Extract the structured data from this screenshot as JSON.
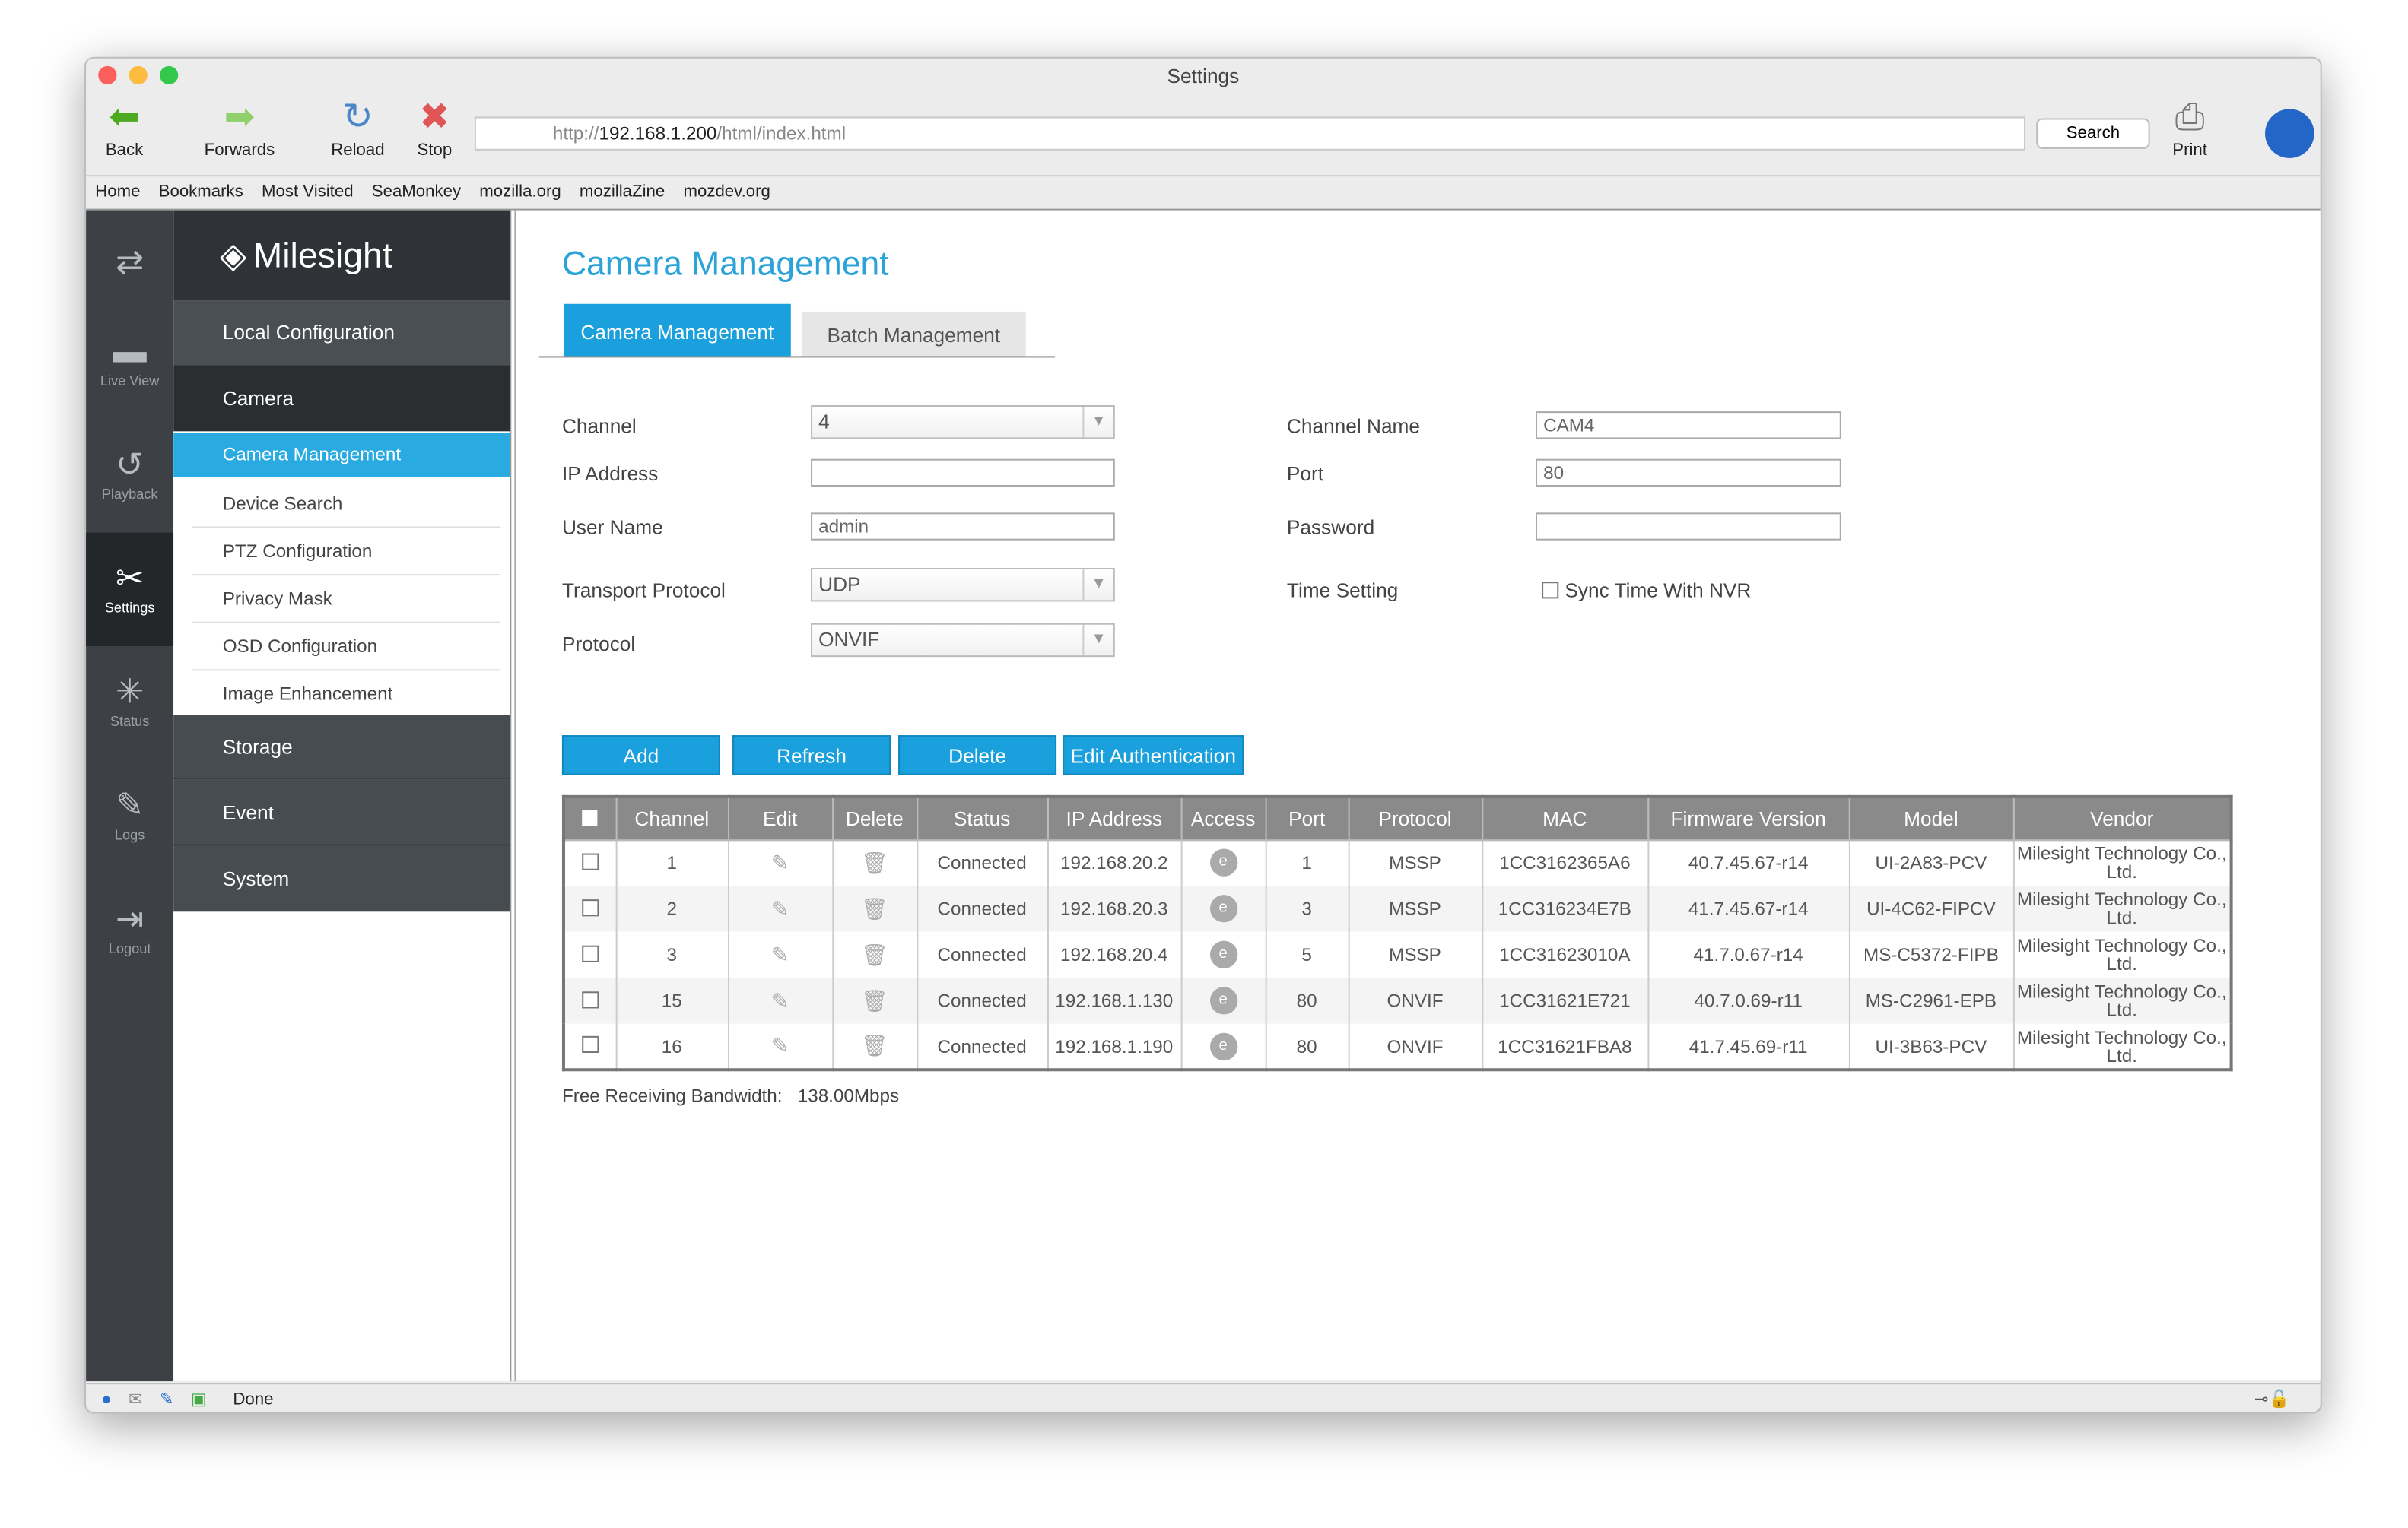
{
  "window": {
    "title": "Settings"
  },
  "toolbar": {
    "back": "Back",
    "forwards": "Forwards",
    "reload": "Reload",
    "stop": "Stop",
    "url_prefix": "http://",
    "url_host": "192.168.1.200",
    "url_path": "/html/index.html",
    "search": "Search",
    "print": "Print"
  },
  "bookmarks": [
    "Home",
    "Bookmarks",
    "Most Visited",
    "SeaMonkey",
    "mozilla.org",
    "mozillaZine",
    "mozdev.org"
  ],
  "strip": [
    {
      "label": "",
      "icon": "switch-icon"
    },
    {
      "label": "Live View",
      "icon": "camera-icon"
    },
    {
      "label": "Playback",
      "icon": "playback-icon"
    },
    {
      "label": "Settings",
      "icon": "settings-icon"
    },
    {
      "label": "Status",
      "icon": "status-icon"
    },
    {
      "label": "Logs",
      "icon": "logs-icon"
    },
    {
      "label": "Logout",
      "icon": "logout-icon"
    }
  ],
  "menu": {
    "logo": "Milesight",
    "local": "Local Configuration",
    "camera": "Camera",
    "selected": "Camera Management",
    "subitems": [
      "Device Search",
      "PTZ Configuration",
      "Privacy Mask",
      "OSD Configuration",
      "Image Enhancement"
    ],
    "bottom": [
      "Storage",
      "Event",
      "System"
    ]
  },
  "main": {
    "title": "Camera Management",
    "tabs": [
      "Camera Management",
      "Batch Management"
    ],
    "form": {
      "channel_label": "Channel",
      "channel": "4",
      "ip_label": "IP Address",
      "ip": "",
      "user_label": "User Name",
      "user": "admin",
      "transport_label": "Transport Protocol",
      "transport": "UDP",
      "protocol_label": "Protocol",
      "protocol": "ONVIF",
      "chname_label": "Channel Name",
      "chname": "CAM4",
      "port_label": "Port",
      "port": "80",
      "password_label": "Password",
      "password": "",
      "time_label": "Time Setting",
      "sync": "Sync Time With NVR"
    },
    "buttons": [
      "Add",
      "Refresh",
      "Delete",
      "Edit Authentication"
    ],
    "columns": [
      "",
      "Channel",
      "Edit",
      "Delete",
      "Status",
      "IP Address",
      "Access",
      "Port",
      "Protocol",
      "MAC",
      "Firmware Version",
      "Model",
      "Vendor"
    ],
    "rows": [
      [
        "1",
        "Connected",
        "192.168.20.2",
        "1",
        "MSSP",
        "1CC3162365A6",
        "40.7.45.67-r14",
        "UI-2A83-PCV",
        "Milesight Technology Co., Ltd."
      ],
      [
        "2",
        "Connected",
        "192.168.20.3",
        "3",
        "MSSP",
        "1CC316234E7B",
        "41.7.45.67-r14",
        "UI-4C62-FIPCV",
        "Milesight Technology Co., Ltd."
      ],
      [
        "3",
        "Connected",
        "192.168.20.4",
        "5",
        "MSSP",
        "1CC31623010A",
        "41.7.0.67-r14",
        "MS-C5372-FIPB",
        "Milesight Technology Co., Ltd."
      ],
      [
        "15",
        "Connected",
        "192.168.1.130",
        "80",
        "ONVIF",
        "1CC31621E721",
        "40.7.0.69-r11",
        "MS-C2961-EPB",
        "Milesight Technology Co., Ltd."
      ],
      [
        "16",
        "Connected",
        "192.168.1.190",
        "80",
        "ONVIF",
        "1CC31621FBA8",
        "41.7.45.69-r11",
        "UI-3B63-PCV",
        "Milesight Technology Co., Ltd."
      ]
    ],
    "bandwidth_label": "Free Receiving Bandwidth:",
    "bandwidth": "138.00Mbps"
  },
  "statusbar": {
    "text": "Done"
  },
  "colors": {
    "accent": "#1aa0dc",
    "menu_dark": "#2f3337"
  }
}
